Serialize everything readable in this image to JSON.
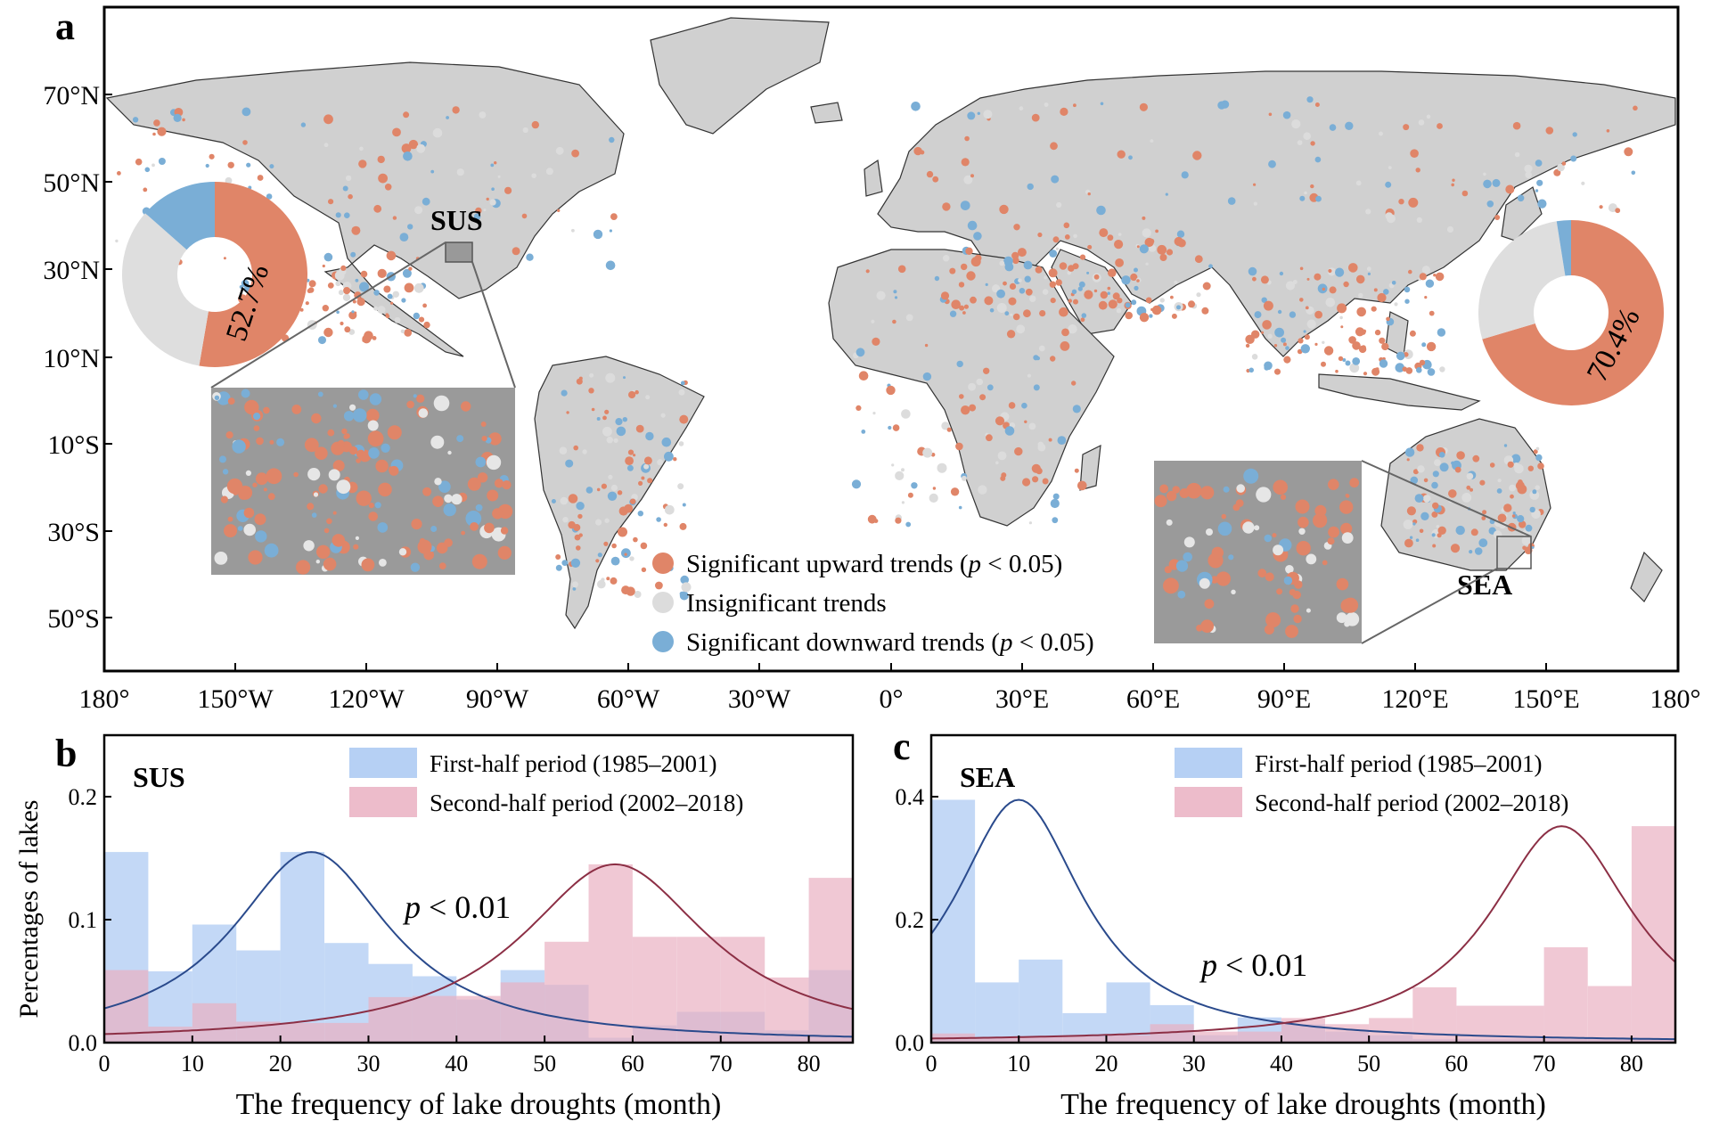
{
  "colors": {
    "upward": "#e08568",
    "insignificant": "#dcdcdc",
    "downward": "#7aaed6",
    "land": "#d0d0d0",
    "inset_bg": "#9a9a9a",
    "first_bar": "#a9c8f2",
    "second_bar": "#eab0c2",
    "first_curve": "#2a4a8c",
    "second_curve": "#8c2f45"
  },
  "panel_a": {
    "label": "a",
    "lat_labels": [
      "70°N",
      "50°N",
      "30°N",
      "10°N",
      "10°S",
      "30°S",
      "50°S"
    ],
    "lon_labels": [
      "180°",
      "150°W",
      "120°W",
      "90°W",
      "60°W",
      "30°W",
      "0°",
      "30°E",
      "60°E",
      "90°E",
      "120°E",
      "150°E",
      "180°"
    ],
    "region_sus": "SUS",
    "region_sea": "SEA",
    "pie_sus": {
      "percent_label": "52.7%",
      "upward": 52.7,
      "insignificant": 33.8,
      "downward": 13.5
    },
    "pie_sea": {
      "percent_label": "70.4%",
      "upward": 70.4,
      "insignificant": 27.1,
      "downward": 2.5
    },
    "legend": {
      "upward_text": "Significant upward trends (",
      "insignificant_text": "Insignificant trends",
      "downward_text": "Significant downward trends (",
      "p_symbol": "p",
      "p_suffix": " < 0.05)"
    }
  },
  "chart_data": [
    {
      "panel": "b",
      "type": "bar",
      "title": "SUS",
      "xlabel": "The frequency of lake droughts (month)",
      "ylabel": "Percentages of lakes",
      "xlim": [
        0,
        85
      ],
      "ylim": [
        0,
        0.25
      ],
      "xticks": [
        0,
        10,
        20,
        30,
        40,
        50,
        60,
        70,
        80
      ],
      "yticks": [
        0.0,
        0.1,
        0.2
      ],
      "bin_edges": [
        0,
        5,
        10,
        15,
        20,
        25,
        30,
        35,
        40,
        45,
        50,
        55,
        60,
        65,
        70,
        75,
        80,
        85
      ],
      "annotation": "p < 0.01",
      "series": [
        {
          "name": "First-half period (1985–2001)",
          "values": [
            0.155,
            0.058,
            0.096,
            0.075,
            0.155,
            0.081,
            0.064,
            0.054,
            0.035,
            0.059,
            0.047,
            0.004,
            0.014,
            0.025,
            0.025,
            0.01,
            0.059
          ],
          "fit_peak": 0.155,
          "fit_center": 23.5,
          "fit_width": 11
        },
        {
          "name": "Second-half period (2002–2018)",
          "values": [
            0.059,
            0.013,
            0.032,
            0.017,
            0.016,
            0.016,
            0.037,
            0.038,
            0.038,
            0.049,
            0.082,
            0.145,
            0.086,
            0.086,
            0.086,
            0.053,
            0.134
          ],
          "fit_peak": 0.145,
          "fit_center": 58,
          "fit_width": 13
        }
      ]
    },
    {
      "panel": "c",
      "type": "bar",
      "title": "SEA",
      "xlabel": "The frequency of lake droughts (month)",
      "ylabel": "",
      "xlim": [
        0,
        85
      ],
      "ylim": [
        0,
        0.5
      ],
      "xticks": [
        0,
        10,
        20,
        30,
        40,
        50,
        60,
        70,
        80
      ],
      "yticks": [
        0.0,
        0.2,
        0.4
      ],
      "bin_edges": [
        0,
        5,
        10,
        15,
        20,
        25,
        30,
        35,
        40,
        45,
        50,
        55,
        60,
        65,
        70,
        75,
        80,
        85
      ],
      "annotation": "p < 0.01",
      "series": [
        {
          "name": "First-half period (1985–2001)",
          "values": [
            0.395,
            0.098,
            0.135,
            0.048,
            0.098,
            0.061,
            0.012,
            0.041,
            0.03,
            0.018,
            0.012,
            0.006,
            0.006,
            0.006,
            0.006,
            0.006,
            0.006
          ],
          "fit_peak": 0.395,
          "fit_center": 10,
          "fit_width": 9
        },
        {
          "name": "Second-half period (2002–2018)",
          "values": [
            0.015,
            0.008,
            0.01,
            0.01,
            0.012,
            0.03,
            0.018,
            0.018,
            0.04,
            0.03,
            0.04,
            0.09,
            0.06,
            0.06,
            0.155,
            0.092,
            0.352
          ],
          "fit_peak": 0.352,
          "fit_center": 72,
          "fit_width": 10
        }
      ]
    }
  ]
}
